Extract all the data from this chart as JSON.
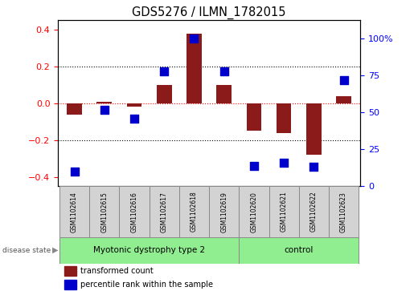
{
  "title": "GDS5276 / ILMN_1782015",
  "samples": [
    "GSM1102614",
    "GSM1102615",
    "GSM1102616",
    "GSM1102617",
    "GSM1102618",
    "GSM1102619",
    "GSM1102620",
    "GSM1102621",
    "GSM1102622",
    "GSM1102623"
  ],
  "red_values": [
    -0.06,
    0.01,
    -0.02,
    0.1,
    0.38,
    0.1,
    -0.15,
    -0.16,
    -0.28,
    0.04
  ],
  "blue_pct": [
    10,
    52,
    46,
    78,
    100,
    78,
    14,
    16,
    13,
    72
  ],
  "group1_label": "Myotonic dystrophy type 2",
  "group1_samples": 6,
  "group2_label": "control",
  "group2_samples": 4,
  "ylim_left": [
    -0.45,
    0.45
  ],
  "ylim_right": [
    0,
    112.5
  ],
  "yticks_left": [
    -0.4,
    -0.2,
    0.0,
    0.2,
    0.4
  ],
  "yticks_right": [
    0,
    25,
    50,
    75,
    100
  ],
  "red_color": "#8B1A1A",
  "blue_color": "#0000CD",
  "sample_box_color": "#D3D3D3",
  "group_color": "#90EE90",
  "bar_width": 0.5,
  "marker_size": 45,
  "legend_red_label": "transformed count",
  "legend_blue_label": "percentile rank within the sample",
  "disease_state_label": "disease state"
}
